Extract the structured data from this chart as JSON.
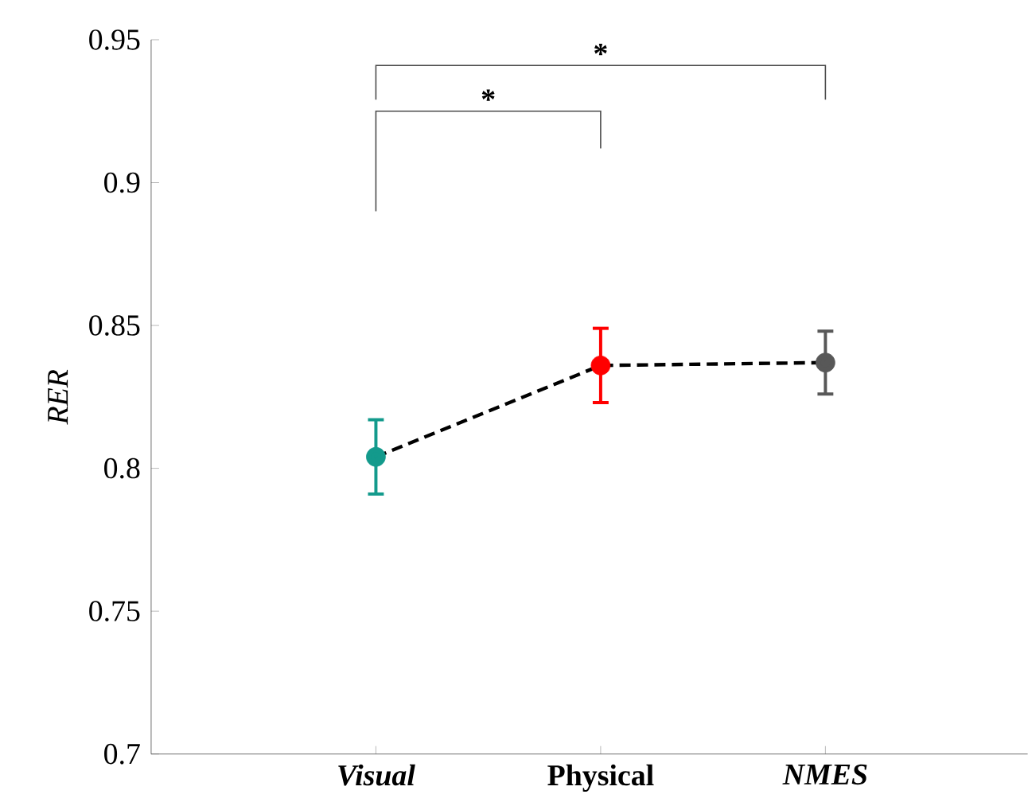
{
  "chart_data": {
    "type": "line",
    "ylabel": "RER",
    "categories": [
      "Visual",
      "Physical",
      "NMES"
    ],
    "series": [
      {
        "color": "#000000",
        "colors": [
          "#139a8c",
          "#ff0000",
          "#585858"
        ],
        "values": [
          0.804,
          0.836,
          0.837
        ],
        "errors": [
          0.013,
          0.013,
          0.011
        ]
      }
    ],
    "ylim": [
      0.7,
      0.95
    ],
    "yticks": [
      0.7,
      0.75,
      0.8,
      0.85,
      0.9,
      0.95
    ],
    "marker": "circle",
    "line_style": "dashed",
    "annotations": [
      "*",
      "*"
    ]
  }
}
